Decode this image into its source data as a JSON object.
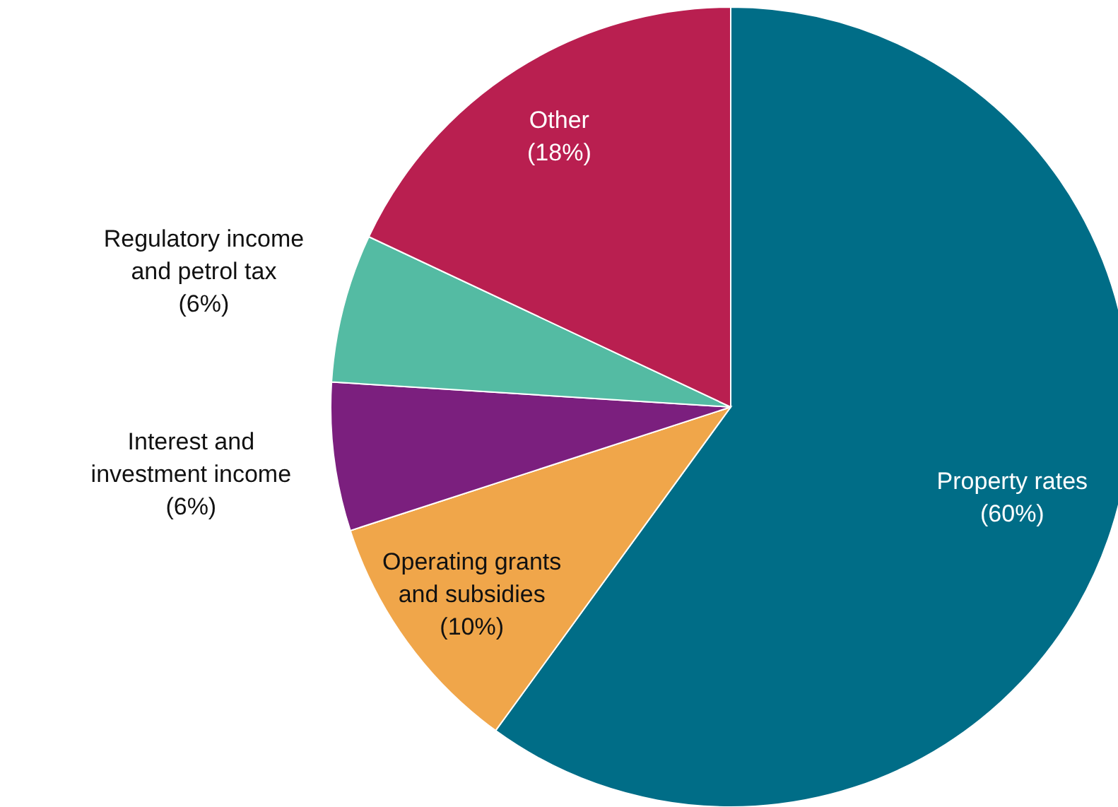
{
  "chart_data": {
    "type": "pie",
    "categories": [
      "Property rates",
      "Operating grants and subsidies",
      "Interest and investment income",
      "Regulatory income and petrol tax",
      "Other"
    ],
    "values": [
      60,
      10,
      6,
      6,
      18
    ],
    "colors": [
      "#006d87",
      "#f0a64a",
      "#7b1f7e",
      "#54bba3",
      "#b91f50"
    ],
    "value_labels": [
      "(60%)",
      "(10%)",
      "(6%)",
      "(6%)",
      "(18%)"
    ]
  }
}
